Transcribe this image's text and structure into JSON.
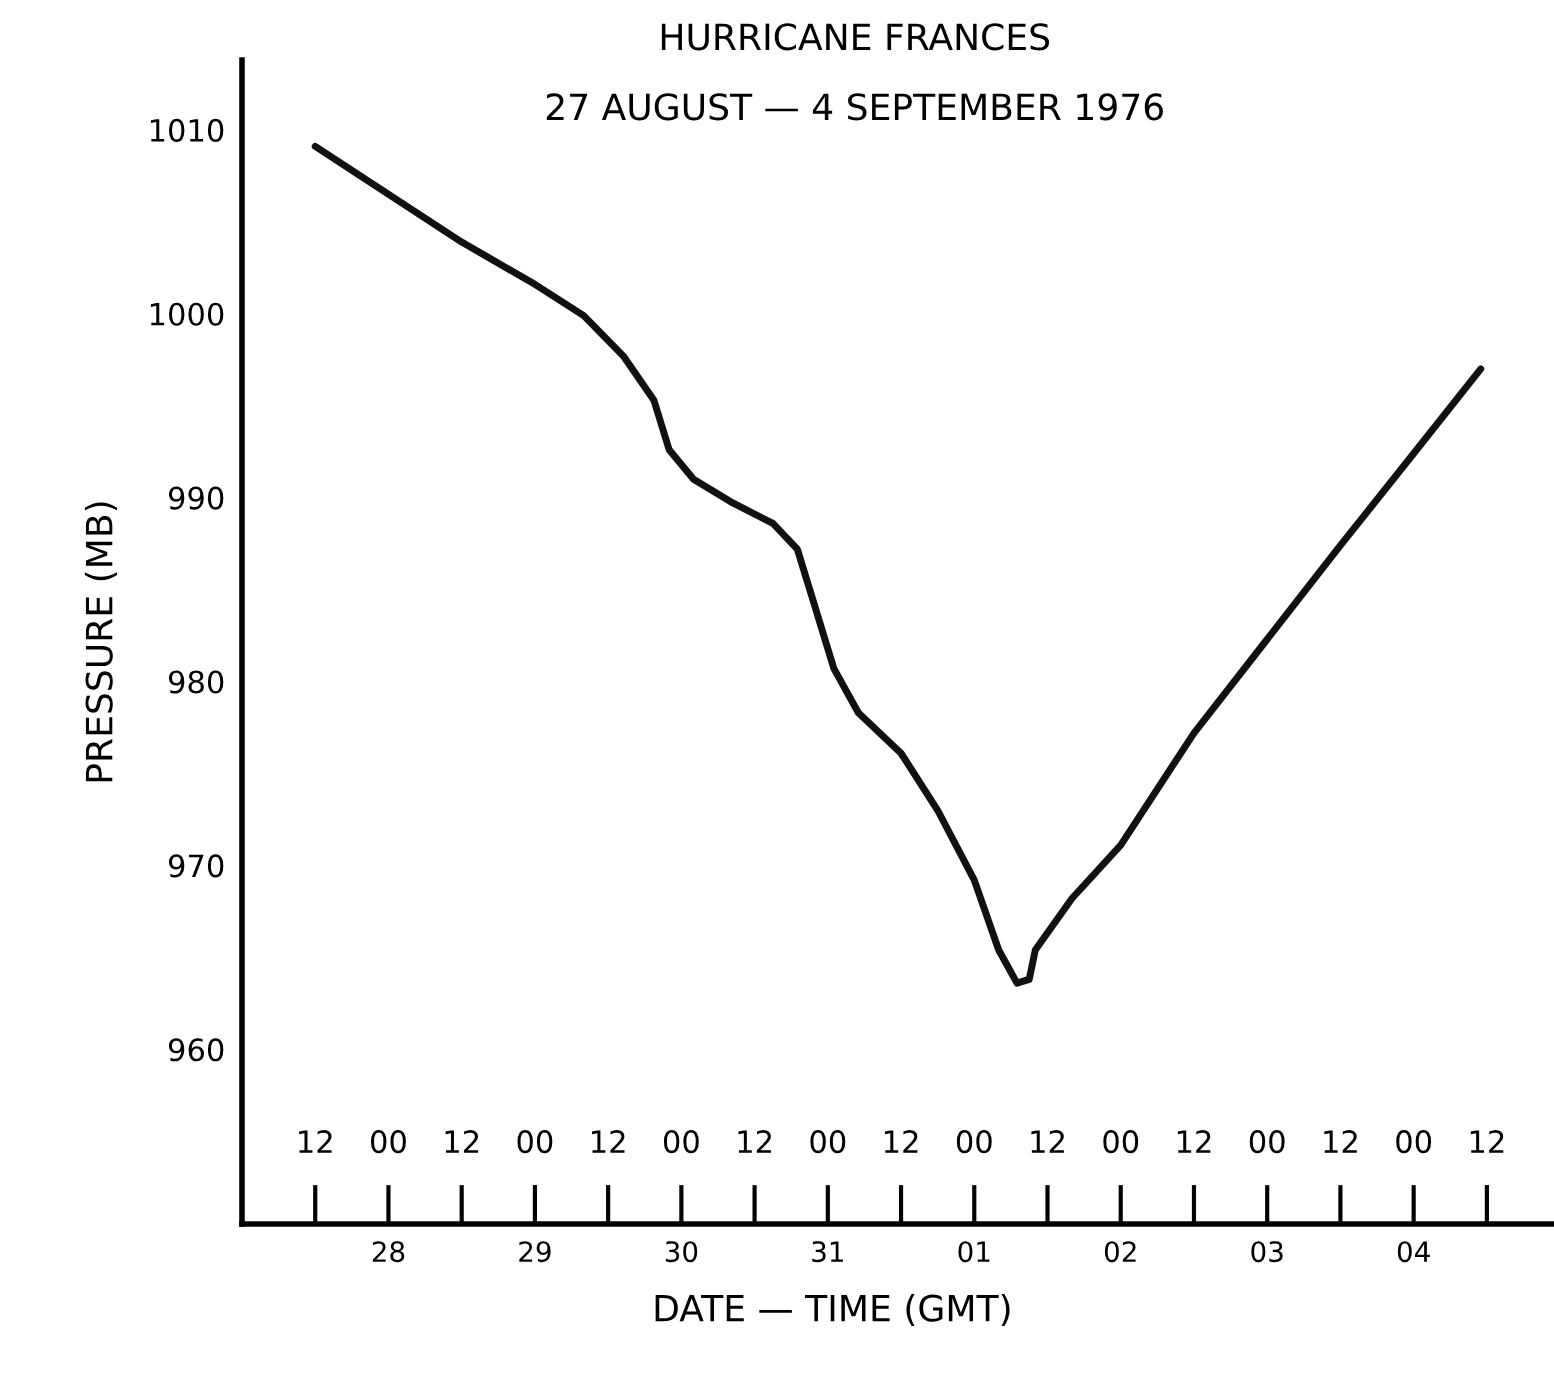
{
  "chart_data": {
    "type": "line",
    "title": "HURRICANE FRANCES",
    "subtitle": "27 AUGUST — 4 SEPTEMBER 1976",
    "xlabel": "DATE — TIME (GMT)",
    "ylabel": "PRESSURE (MB)",
    "x": [
      "1976-08-27T12:00",
      "1976-08-28T12:00",
      "1976-08-29T00:00",
      "1976-08-29T08:00",
      "1976-08-29T14:30",
      "1976-08-29T19:30",
      "1976-08-29T22:00",
      "1976-08-30T02:00",
      "1976-08-30T08:30",
      "1976-08-30T15:00",
      "1976-08-30T19:00",
      "1976-08-30T21:30",
      "1976-08-31T01:00",
      "1976-08-31T05:00",
      "1976-08-31T12:00",
      "1976-08-31T18:00",
      "1976-09-01T00:00",
      "1976-09-01T04:00",
      "1976-09-01T07:00",
      "1976-09-01T09:00",
      "1976-09-01T10:00",
      "1976-09-01T16:00",
      "1976-09-02T00:00",
      "1976-09-02T12:00",
      "1976-09-03T00:00",
      "1976-09-03T12:00",
      "1976-09-04T00:00",
      "1976-09-04T11:00"
    ],
    "series": [
      {
        "color": "#111111",
        "values": [
          1009.1,
          1003.9,
          1001.6,
          999.9,
          997.7,
          995.3,
          992.6,
          991.0,
          989.7,
          988.6,
          987.2,
          984.5,
          980.7,
          978.3,
          976.1,
          973.0,
          969.2,
          965.4,
          963.6,
          963.8,
          965.4,
          968.2,
          971.1,
          977.2,
          982.3,
          987.4,
          992.4,
          997.0
        ]
      }
    ],
    "xlim": [
      "1976-08-27T00:00",
      "1976-09-04T23:00"
    ],
    "ylim": [
      950.5,
      1013.8
    ],
    "xticks": [
      {
        "value": "1976-08-27T12:00",
        "label": "12"
      },
      {
        "value": "1976-08-28T00:00",
        "label": "00"
      },
      {
        "value": "1976-08-28T12:00",
        "label": "12"
      },
      {
        "value": "1976-08-29T00:00",
        "label": "00"
      },
      {
        "value": "1976-08-29T12:00",
        "label": "12"
      },
      {
        "value": "1976-08-30T00:00",
        "label": "00"
      },
      {
        "value": "1976-08-30T12:00",
        "label": "12"
      },
      {
        "value": "1976-08-31T00:00",
        "label": "00"
      },
      {
        "value": "1976-08-31T12:00",
        "label": "12"
      },
      {
        "value": "1976-09-01T00:00",
        "label": "00"
      },
      {
        "value": "1976-09-01T12:00",
        "label": "12"
      },
      {
        "value": "1976-09-02T00:00",
        "label": "00"
      },
      {
        "value": "1976-09-02T12:00",
        "label": "12"
      },
      {
        "value": "1976-09-03T00:00",
        "label": "00"
      },
      {
        "value": "1976-09-03T12:00",
        "label": "12"
      },
      {
        "value": "1976-09-04T00:00",
        "label": "00"
      },
      {
        "value": "1976-09-04T12:00",
        "label": "12"
      }
    ],
    "x2lim": [
      "1976-08-27T00:00",
      "1976-09-04T23:00"
    ],
    "x2ticks": [
      {
        "value": "1976-08-28T00:00",
        "label": "28"
      },
      {
        "value": "1976-08-29T00:00",
        "label": "29"
      },
      {
        "value": "1976-08-30T00:00",
        "label": "30"
      },
      {
        "value": "1976-08-31T00:00",
        "label": "31"
      },
      {
        "value": "1976-09-01T00:00",
        "label": "01"
      },
      {
        "value": "1976-09-02T00:00",
        "label": "02"
      },
      {
        "value": "1976-09-03T00:00",
        "label": "03"
      },
      {
        "value": "1976-09-04T00:00",
        "label": "04"
      }
    ],
    "yticks": [
      960,
      970,
      980,
      990,
      1000,
      1010
    ],
    "grid": false,
    "legend": false,
    "marker": "none",
    "line_style": "solid"
  }
}
